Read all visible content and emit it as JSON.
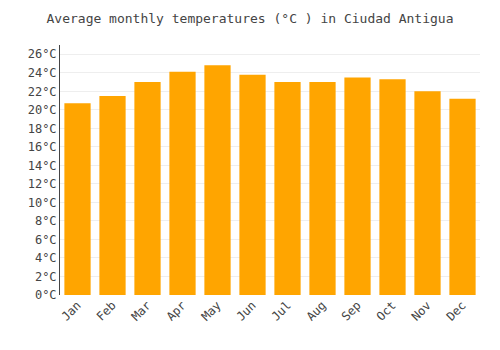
{
  "chart_data": {
    "type": "bar",
    "title": "Average monthly temperatures (°C ) in Ciudad Antigua",
    "categories": [
      "Jan",
      "Feb",
      "Mar",
      "Apr",
      "May",
      "Jun",
      "Jul",
      "Aug",
      "Sep",
      "Oct",
      "Nov",
      "Dec"
    ],
    "values": [
      20.7,
      21.5,
      23.0,
      24.1,
      24.8,
      23.8,
      23.0,
      23.0,
      23.5,
      23.3,
      22.0,
      21.2
    ],
    "color": "#FFA500",
    "ylim": [
      0,
      27
    ],
    "yticks": [
      {
        "value": 0,
        "label": "0°C"
      },
      {
        "value": 2,
        "label": "2°C"
      },
      {
        "value": 4,
        "label": "4°C"
      },
      {
        "value": 6,
        "label": "6°C"
      },
      {
        "value": 8,
        "label": "8°C"
      },
      {
        "value": 10,
        "label": "10°C"
      },
      {
        "value": 12,
        "label": "12°C"
      },
      {
        "value": 14,
        "label": "14°C"
      },
      {
        "value": 16,
        "label": "16°C"
      },
      {
        "value": 18,
        "label": "18°C"
      },
      {
        "value": 20,
        "label": "20°C"
      },
      {
        "value": 22,
        "label": "22°C"
      },
      {
        "value": 24,
        "label": "24°C"
      },
      {
        "value": 26,
        "label": "26°C"
      }
    ],
    "grid": true
  }
}
